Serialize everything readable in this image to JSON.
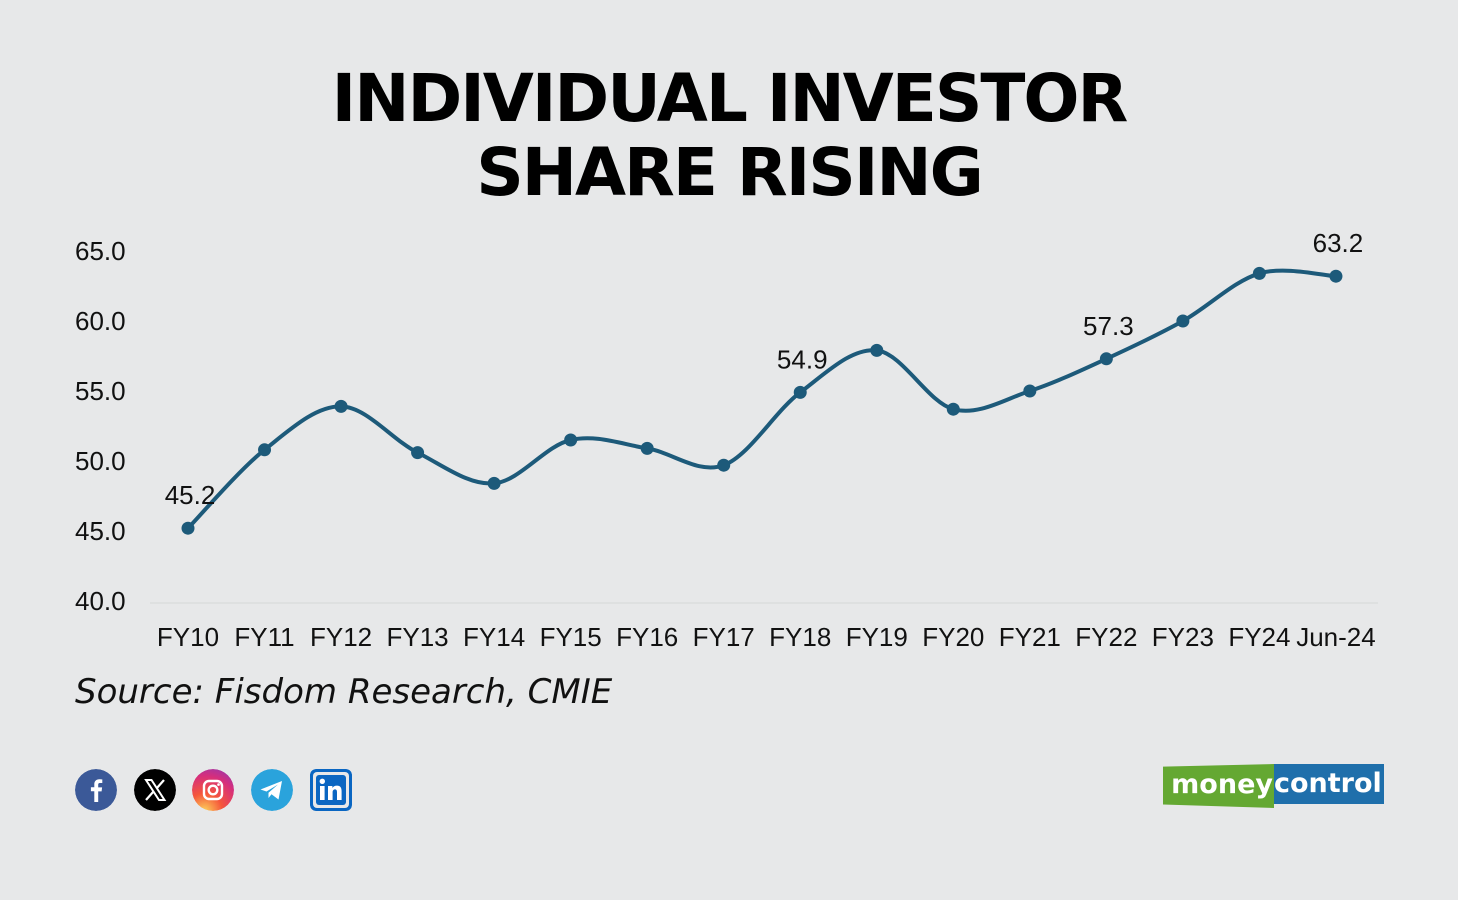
{
  "title_lines": [
    "INDIVIDUAL INVESTOR",
    "SHARE RISING"
  ],
  "source": "Source: Fisdom Research, CMIE",
  "colors": {
    "background": "#e7e8e9",
    "line": "#1d5a7a",
    "logo_green": "#64a832",
    "logo_blue": "#1f6fab"
  },
  "social_icons": [
    "facebook-icon",
    "x-icon",
    "instagram-icon",
    "telegram-icon",
    "linkedin-icon"
  ],
  "logo": {
    "part1": "money",
    "part2": "control"
  },
  "chart_data": {
    "type": "line",
    "title": "INDIVIDUAL INVESTOR SHARE RISING",
    "categories": [
      "FY10",
      "FY11",
      "FY12",
      "FY13",
      "FY14",
      "FY15",
      "FY16",
      "FY17",
      "FY18",
      "FY19",
      "FY20",
      "FY21",
      "FY22",
      "FY23",
      "FY24",
      "Jun-24"
    ],
    "series": [
      {
        "values": [
          45.2,
          50.8,
          53.9,
          50.6,
          48.4,
          51.5,
          50.9,
          49.7,
          54.9,
          57.9,
          53.7,
          55.0,
          57.3,
          60.0,
          63.4,
          63.2
        ]
      }
    ],
    "data_labels": [
      {
        "index": 0,
        "text": "45.2"
      },
      {
        "index": 8,
        "text": "54.9"
      },
      {
        "index": 12,
        "text": "57.3"
      },
      {
        "index": 15,
        "text": "63.2"
      }
    ],
    "y_ticks": [
      "40.0",
      "45.0",
      "50.0",
      "55.0",
      "60.0",
      "65.0"
    ],
    "ylim": [
      40,
      65
    ],
    "grid": false,
    "legend": "none"
  }
}
